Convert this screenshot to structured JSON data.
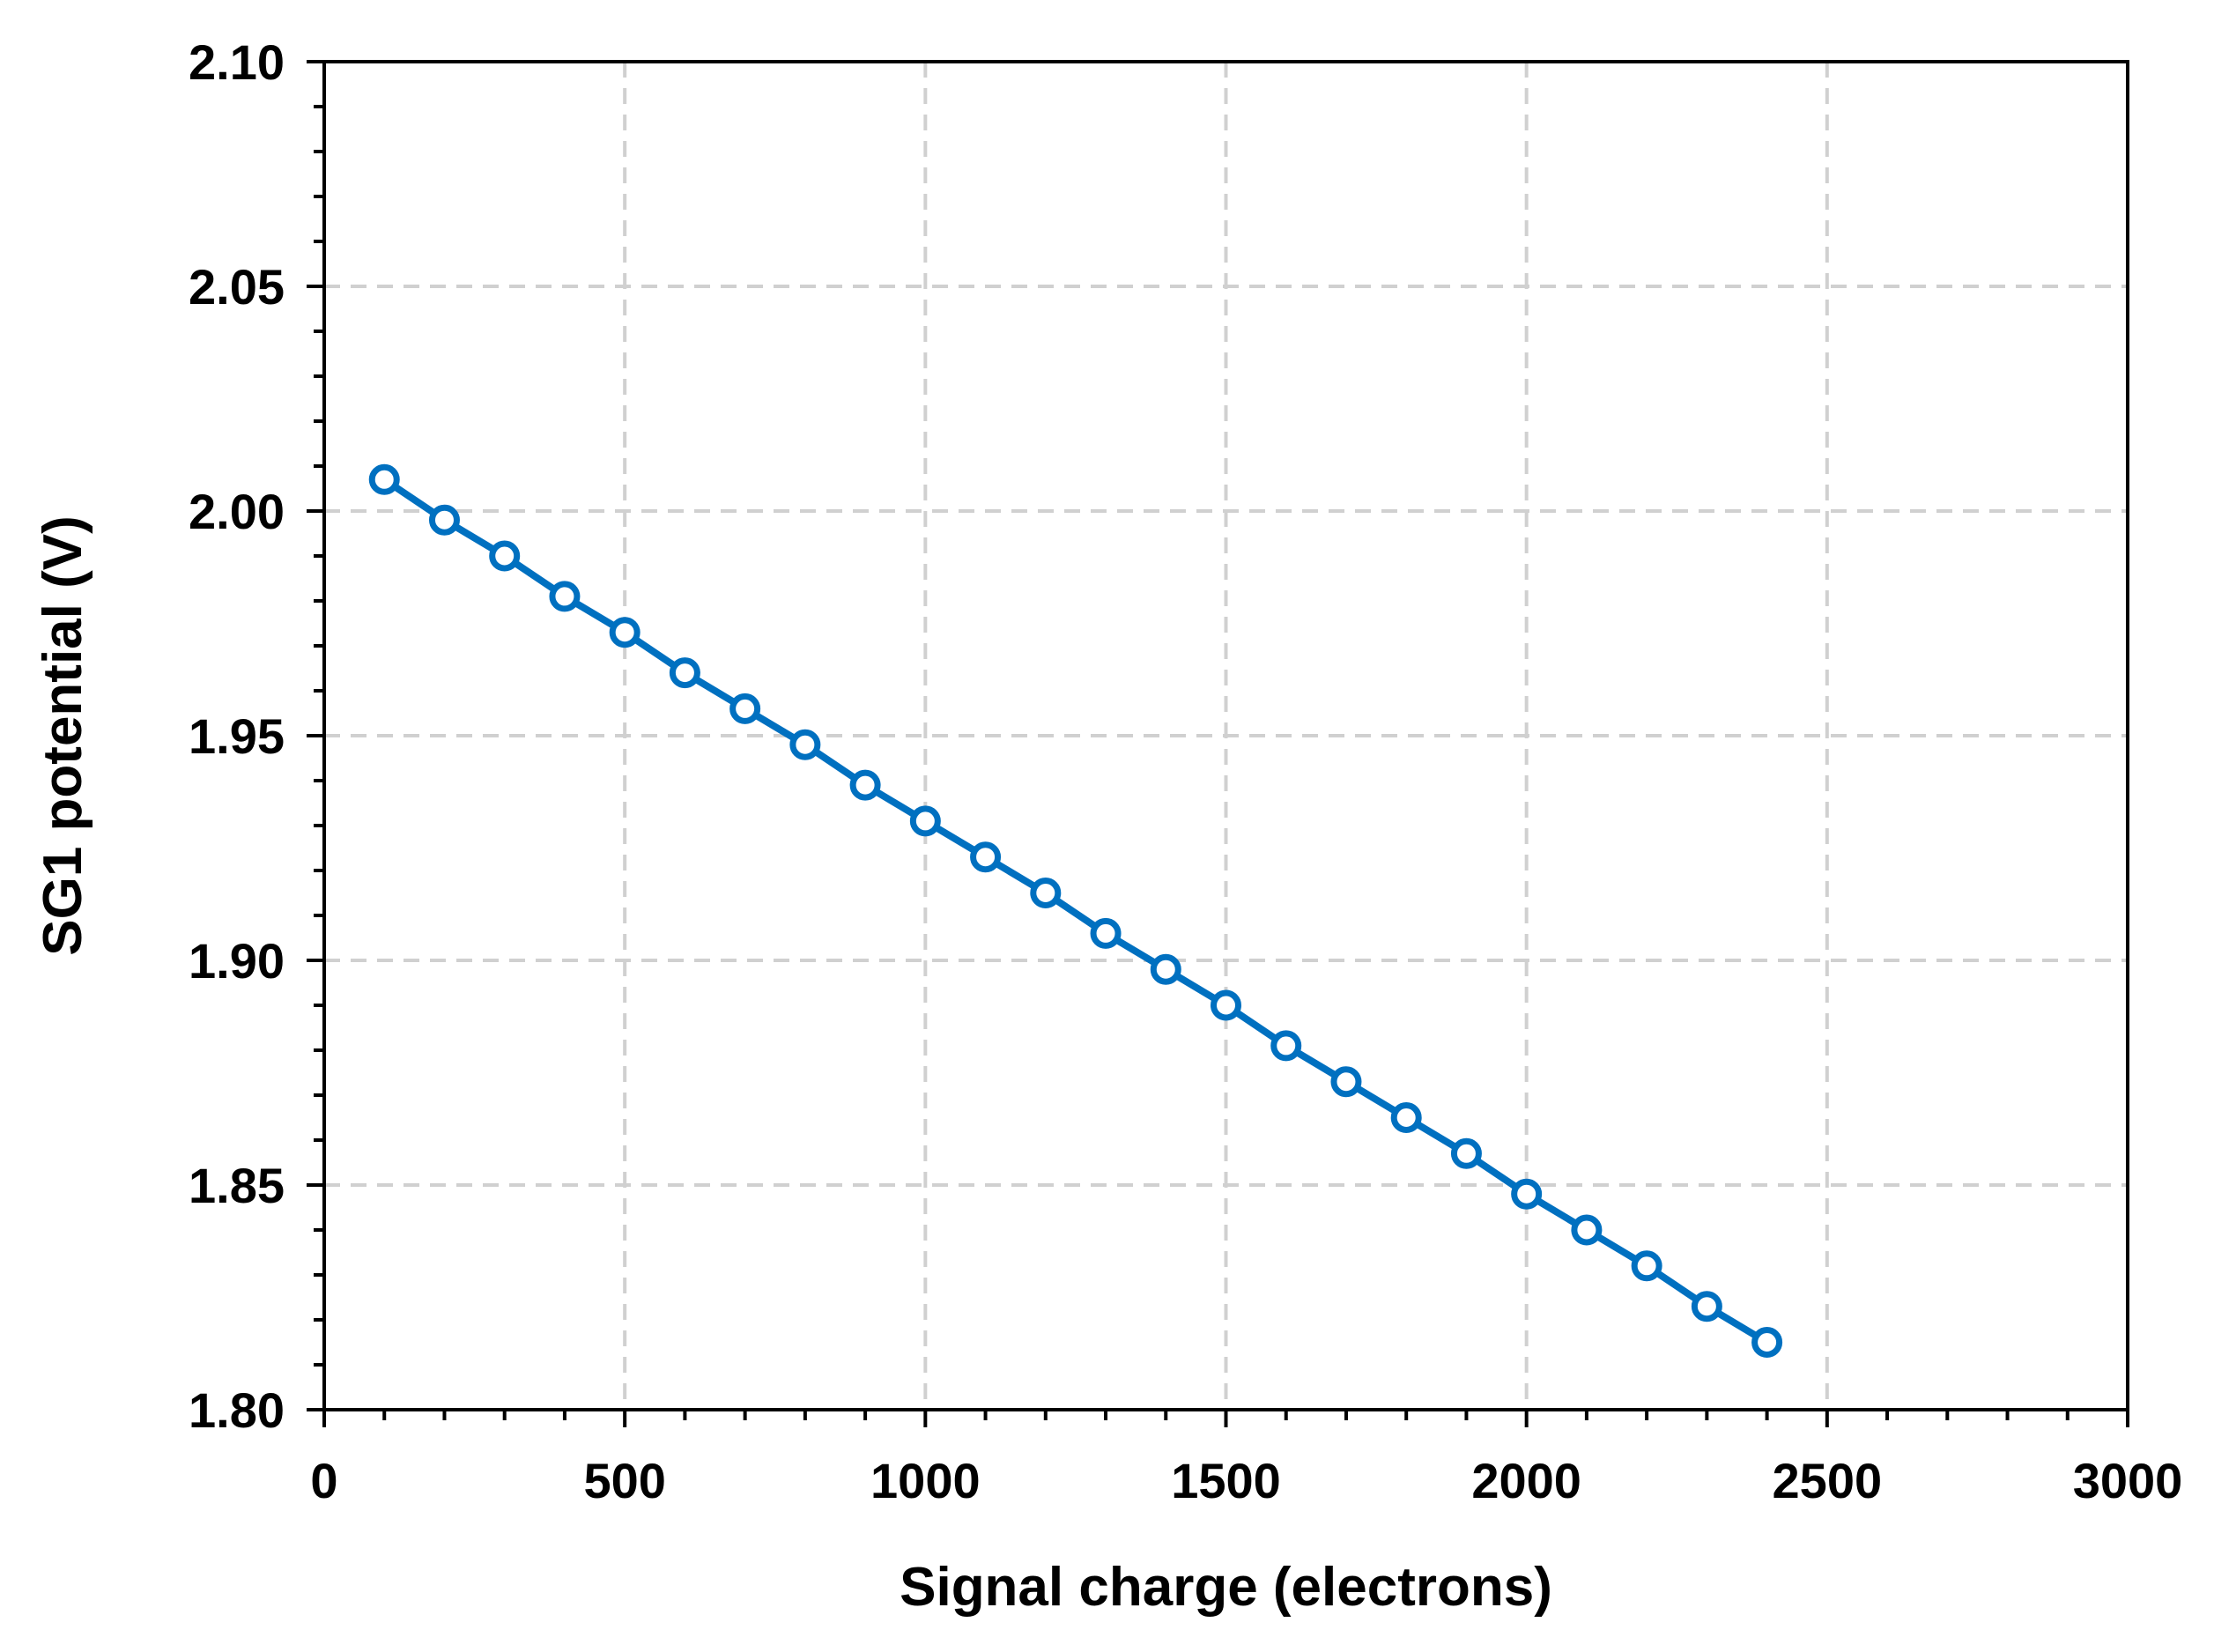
{
  "chart_data": {
    "type": "line",
    "title": "",
    "xlabel": "Signal charge (electrons)",
    "ylabel": "SG1 potential (V)",
    "xlim": [
      0,
      3000
    ],
    "ylim": [
      1.8,
      2.1
    ],
    "x_ticks": [
      "0",
      "500",
      "1000",
      "1500",
      "2000",
      "2500",
      "3000"
    ],
    "y_ticks": [
      "1.80",
      "1.85",
      "1.90",
      "1.95",
      "2.00",
      "2.05",
      "2.10"
    ],
    "grid": true,
    "legend": "none",
    "series": [
      {
        "color": "#0070C0",
        "marker": "open-circle",
        "x": [
          100,
          200,
          300,
          400,
          500,
          600,
          700,
          800,
          900,
          1000,
          1100,
          1200,
          1300,
          1400,
          1500,
          1600,
          1700,
          1800,
          1900,
          2000,
          2100,
          2200,
          2300,
          2400
        ],
        "y": [
          2.007,
          1.998,
          1.99,
          1.981,
          1.973,
          1.964,
          1.956,
          1.948,
          1.939,
          1.931,
          1.923,
          1.915,
          1.906,
          1.898,
          1.89,
          1.881,
          1.873,
          1.865,
          1.857,
          1.848,
          1.84,
          1.832,
          1.823,
          1.815
        ]
      }
    ]
  }
}
